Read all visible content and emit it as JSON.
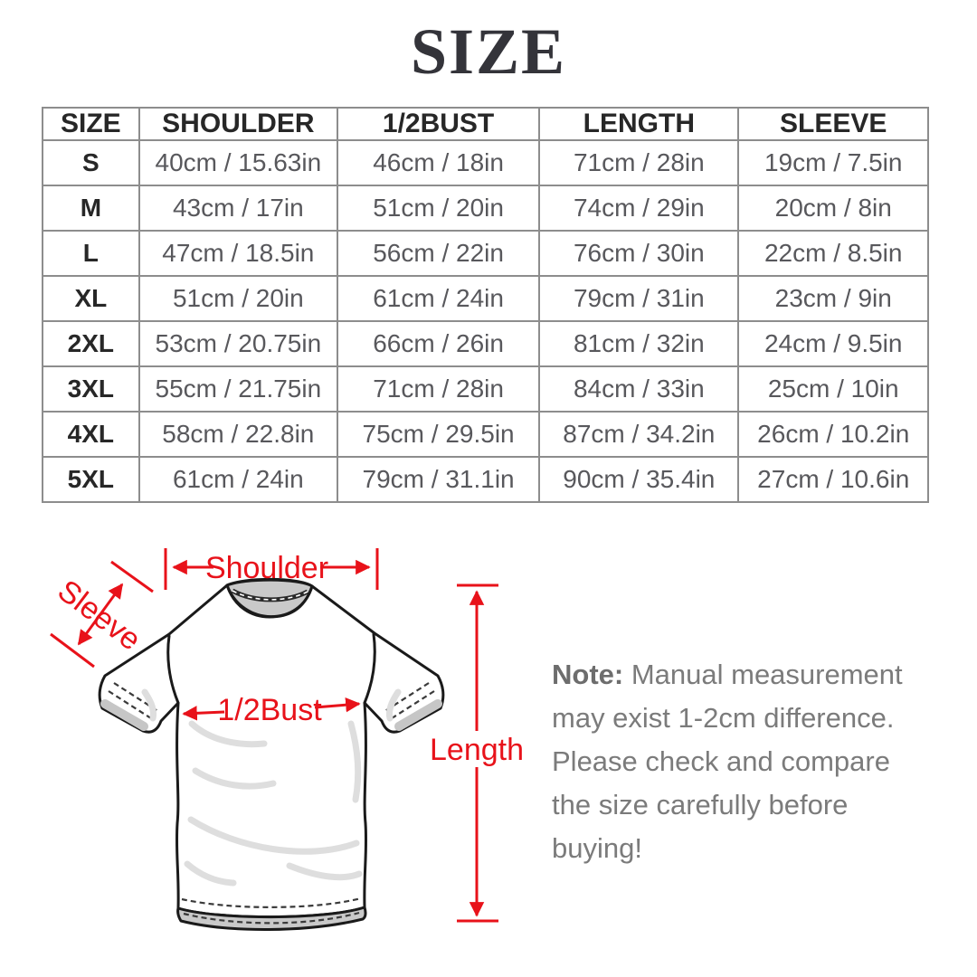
{
  "title": "SIZE",
  "table": {
    "headers": [
      "SIZE",
      "SHOULDER",
      "1/2BUST",
      "LENGTH",
      "SLEEVE"
    ],
    "rows": [
      [
        "S",
        "40cm / 15.63in",
        "46cm / 18in",
        "71cm / 28in",
        "19cm / 7.5in"
      ],
      [
        "M",
        "43cm / 17in",
        "51cm / 20in",
        "74cm / 29in",
        "20cm / 8in"
      ],
      [
        "L",
        "47cm / 18.5in",
        "56cm / 22in",
        "76cm / 30in",
        "22cm / 8.5in"
      ],
      [
        "XL",
        "51cm / 20in",
        "61cm / 24in",
        "79cm / 31in",
        "23cm / 9in"
      ],
      [
        "2XL",
        "53cm / 20.75in",
        "66cm / 26in",
        "81cm / 32in",
        "24cm / 9.5in"
      ],
      [
        "3XL",
        "55cm / 21.75in",
        "71cm / 28in",
        "84cm / 33in",
        "25cm / 10in"
      ],
      [
        "4XL",
        "58cm / 22.8in",
        "75cm / 29.5in",
        "87cm / 34.2in",
        "26cm / 10.2in"
      ],
      [
        "5XL",
        "61cm / 24in",
        "79cm / 31.1in",
        "90cm / 35.4in",
        "27cm / 10.6in"
      ]
    ]
  },
  "diagram": {
    "accent_color": "#e8121a",
    "labels": {
      "shoulder": "Shoulder",
      "sleeve": "Sleeve",
      "bust": "1/2Bust",
      "length": "Length"
    }
  },
  "note": {
    "label": "Note:",
    "text": " Manual measurement may exist 1-2cm difference. Please check and compare the size carefully before buying!"
  }
}
